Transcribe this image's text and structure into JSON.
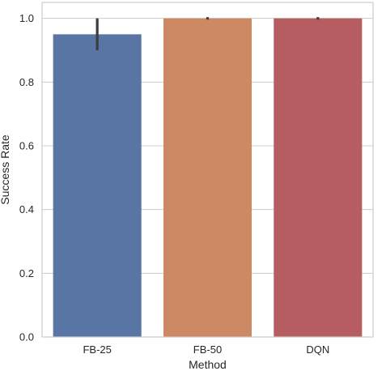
{
  "chart_data": {
    "type": "bar",
    "title": "",
    "xlabel": "Method",
    "ylabel": "Success Rate",
    "categories": [
      "FB-25",
      "FB-50",
      "DQN"
    ],
    "values": [
      0.95,
      1.0,
      1.0
    ],
    "error_bars": [
      {
        "low": 0.9,
        "high": 1.0
      },
      {
        "low": 1.0,
        "high": 1.0
      },
      {
        "low": 1.0,
        "high": 1.0
      }
    ],
    "colors": [
      "#5975a4",
      "#cc8963",
      "#b55d60"
    ],
    "ylim": [
      0,
      1.05
    ],
    "yticks": [
      0.0,
      0.2,
      0.4,
      0.6,
      0.8,
      1.0
    ],
    "ytick_labels": [
      "0.0",
      "0.2",
      "0.4",
      "0.6",
      "0.8",
      "1.0"
    ],
    "grid": "horizontal",
    "legend": "none"
  }
}
